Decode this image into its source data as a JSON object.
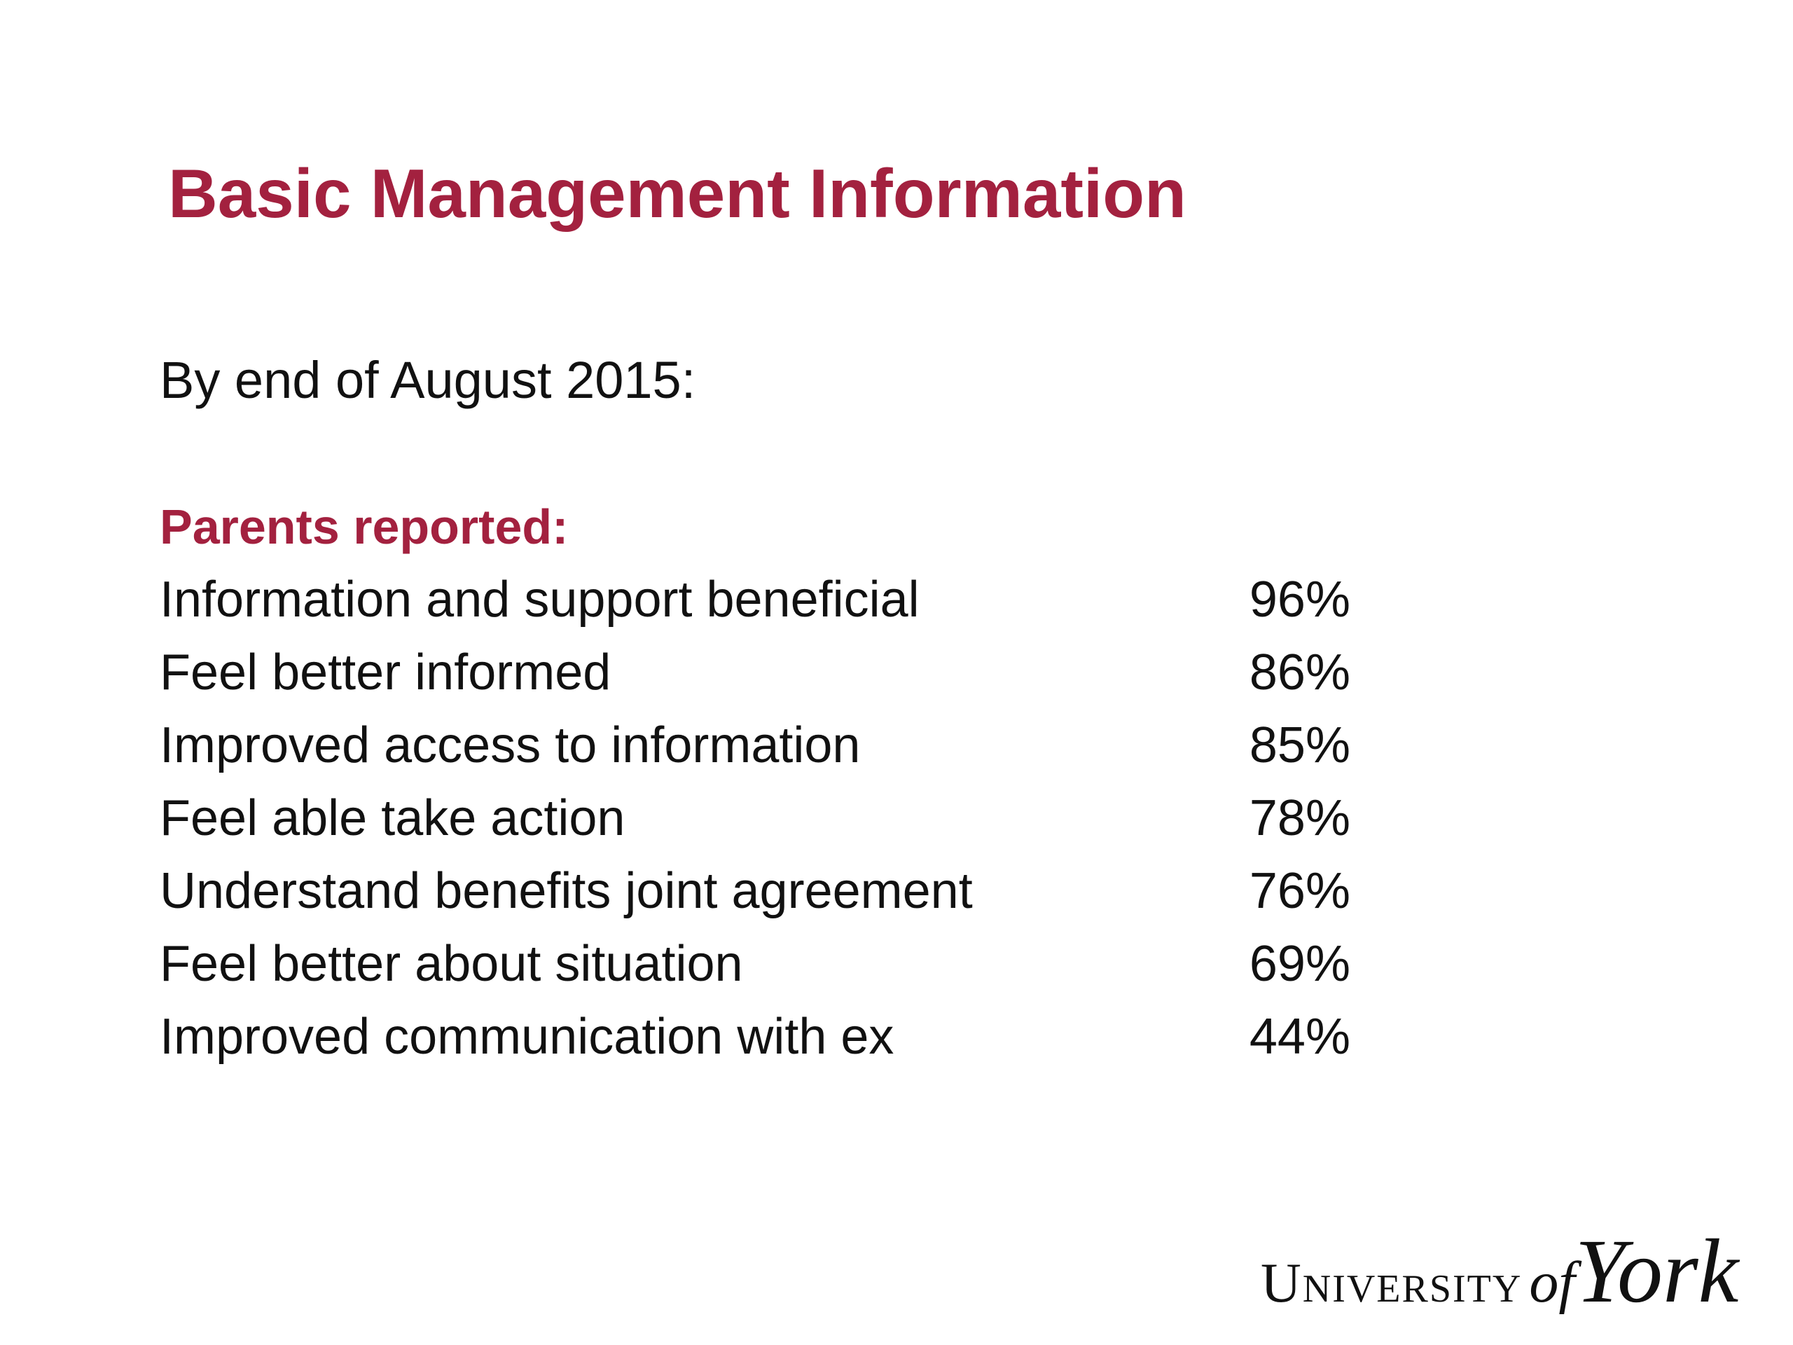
{
  "header": {
    "title": "Basic Management Information"
  },
  "subtitle": "By end of August 2015:",
  "section": {
    "heading": "Parents reported:",
    "rows": [
      [
        "Information and support beneficial",
        "96%"
      ],
      [
        "Feel better informed",
        "86%"
      ],
      [
        "Improved access to information",
        "85%"
      ],
      [
        "Feel able take action",
        "78%"
      ],
      [
        "Understand benefits joint agreement",
        "76%"
      ],
      [
        "Feel better about situation",
        "69%"
      ],
      [
        "Improved communication with ex",
        "44%"
      ]
    ]
  },
  "logo": {
    "university": "University",
    "of": "of",
    "york": "York"
  }
}
